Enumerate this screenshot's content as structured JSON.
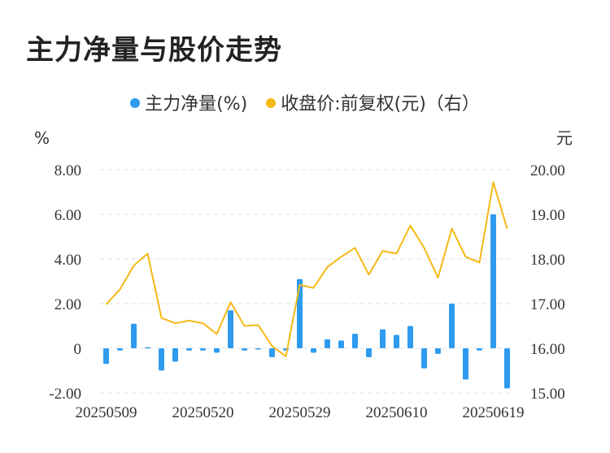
{
  "title": "主力净量与股价走势",
  "colors": {
    "bar": "#2e9bef",
    "line": "#f5b915",
    "grid": "#e3e3e3"
  },
  "chart_data": {
    "type": "bar+line",
    "title": "主力净量与股价走势",
    "legend_position": "top",
    "left_unit": "%",
    "right_unit": "元",
    "left_ylim": [
      -2,
      8
    ],
    "right_ylim": [
      15,
      20
    ],
    "left_ticks": [
      "-2.00",
      "0",
      "2.00",
      "4.00",
      "6.00",
      "8.00"
    ],
    "right_ticks": [
      "15.00",
      "16.00",
      "17.00",
      "18.00",
      "19.00",
      "20.00"
    ],
    "x_tick_labels": [
      {
        "index": 0,
        "label": "20250509"
      },
      {
        "index": 7,
        "label": "20250520"
      },
      {
        "index": 14,
        "label": "20250529"
      },
      {
        "index": 21,
        "label": "20250610"
      },
      {
        "index": 28,
        "label": "20250619"
      }
    ],
    "grid": true,
    "series": [
      {
        "name": "主力净量(%)",
        "type": "bar",
        "axis": "left",
        "values": [
          -0.7,
          -0.1,
          1.1,
          0.05,
          -1.0,
          -0.6,
          -0.1,
          -0.1,
          -0.2,
          1.7,
          -0.1,
          0.0,
          -0.4,
          -0.1,
          3.1,
          -0.2,
          0.4,
          0.35,
          0.65,
          -0.4,
          0.85,
          0.6,
          1.0,
          -0.9,
          -0.25,
          2.0,
          -1.4,
          -0.1,
          6.0,
          -1.8
        ]
      },
      {
        "name": "收盘价:前复权(元)（右）",
        "type": "line",
        "axis": "right",
        "values": [
          16.98,
          17.32,
          17.85,
          18.12,
          16.68,
          16.56,
          16.62,
          16.56,
          16.32,
          17.03,
          16.5,
          16.52,
          16.05,
          15.82,
          17.42,
          17.35,
          17.82,
          18.05,
          18.25,
          17.65,
          18.18,
          18.12,
          18.75,
          18.25,
          17.58,
          18.68,
          18.05,
          17.92,
          19.72,
          18.68
        ]
      }
    ]
  }
}
